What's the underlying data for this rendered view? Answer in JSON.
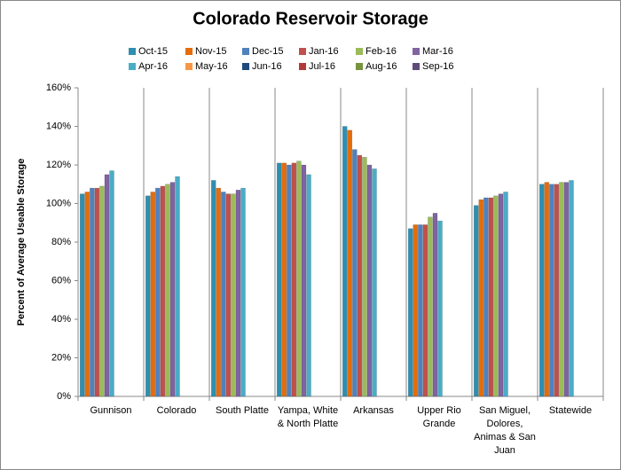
{
  "chart_data": {
    "type": "bar",
    "title": "Colorado Reservoir Storage",
    "y_label": "Percent of Average Useable Storage",
    "categories": [
      "Gunnison",
      "Colorado",
      "South Platte",
      "Yampa, White & North Platte",
      "Arkansas",
      "Upper Rio Grande",
      "San Miguel, Dolores, Animas & San Juan",
      "Statewide"
    ],
    "series": [
      {
        "name": "Oct-15",
        "color": "#2e8fb0",
        "values": [
          105,
          104,
          112,
          121,
          140,
          87,
          99,
          110
        ]
      },
      {
        "name": "Nov-15",
        "color": "#e46c0a",
        "values": [
          106,
          106,
          108,
          121,
          138,
          89,
          102,
          111
        ]
      },
      {
        "name": "Dec-15",
        "color": "#4f81bd",
        "values": [
          108,
          108,
          106,
          120,
          128,
          89,
          103,
          110
        ]
      },
      {
        "name": "Jan-16",
        "color": "#c0504d",
        "values": [
          108,
          109,
          105,
          121,
          125,
          89,
          103,
          110
        ]
      },
      {
        "name": "Feb-16",
        "color": "#9bbb59",
        "values": [
          109,
          110,
          105,
          122,
          124,
          93,
          104,
          111
        ]
      },
      {
        "name": "Mar-16",
        "color": "#8064a2",
        "values": [
          115,
          111,
          107,
          120,
          120,
          95,
          105,
          111
        ]
      },
      {
        "name": "Apr-16",
        "color": "#4bacc6",
        "values": [
          117,
          114,
          108,
          115,
          118,
          91,
          106,
          112
        ]
      },
      {
        "name": "May-16",
        "color": "#f79646",
        "values": [
          null,
          null,
          null,
          null,
          null,
          null,
          null,
          null
        ]
      },
      {
        "name": "Jun-16",
        "color": "#1f497d",
        "values": [
          null,
          null,
          null,
          null,
          null,
          null,
          null,
          null
        ]
      },
      {
        "name": "Jul-16",
        "color": "#b23b38",
        "values": [
          null,
          null,
          null,
          null,
          null,
          null,
          null,
          null
        ]
      },
      {
        "name": "Aug-16",
        "color": "#77933c",
        "values": [
          null,
          null,
          null,
          null,
          null,
          null,
          null,
          null
        ]
      },
      {
        "name": "Sep-16",
        "color": "#604a7b",
        "values": [
          null,
          null,
          null,
          null,
          null,
          null,
          null,
          null
        ]
      }
    ],
    "ylim": [
      0,
      160
    ],
    "yticks": [
      {
        "value": 0,
        "label": "0%"
      },
      {
        "value": 20,
        "label": "20%"
      },
      {
        "value": 40,
        "label": "40%"
      },
      {
        "value": 60,
        "label": "60%"
      },
      {
        "value": 80,
        "label": "80%"
      },
      {
        "value": 100,
        "label": "100%"
      },
      {
        "value": 120,
        "label": "120%"
      },
      {
        "value": 140,
        "label": "140%"
      },
      {
        "value": 160,
        "label": "160%"
      }
    ],
    "grid": false,
    "legend": "top"
  }
}
